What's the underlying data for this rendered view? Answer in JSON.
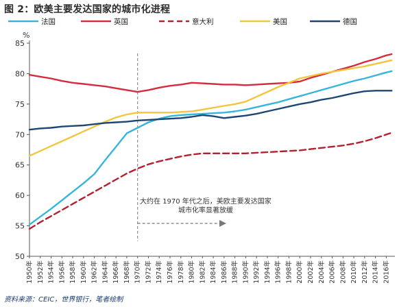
{
  "header": {
    "title": "图 2：欧美主要发达国家的城市化进程"
  },
  "footer": {
    "source": "资料来源：CEIC，世界银行，笔者绘制"
  },
  "colors": {
    "france": "#35b4dc",
    "uk": "#d42b3d",
    "italy": "#b3202e",
    "us": "#f2c53e",
    "germany": "#1d4674",
    "axis": "#555555",
    "annotation": "#777777"
  },
  "chart_data": {
    "type": "line",
    "title": "图 2：欧美主要发达国家的城市化进程",
    "ylabel": "%",
    "ylim": [
      50,
      85
    ],
    "yticks": [
      50,
      55,
      60,
      65,
      70,
      75,
      80,
      85
    ],
    "grid": false,
    "legend": "top",
    "x": [
      1950,
      1952,
      1954,
      1956,
      1958,
      1960,
      1962,
      1964,
      1966,
      1968,
      1970,
      1972,
      1974,
      1976,
      1978,
      1980,
      1982,
      1984,
      1986,
      1988,
      1990,
      1992,
      1994,
      1996,
      1998,
      2000,
      2002,
      2004,
      2006,
      2008,
      2010,
      2012,
      2014,
      2016,
      2017
    ],
    "xtick_labels": [
      "1950年",
      "1952年",
      "1954年",
      "1956年",
      "1958年",
      "1960年",
      "1962年",
      "1964年",
      "1966年",
      "1968年",
      "1970年",
      "1972年",
      "1974年",
      "1976年",
      "1978年",
      "1980年",
      "1982年",
      "1984年",
      "1986年",
      "1988年",
      "1990年",
      "1992年",
      "1994年",
      "1996年",
      "1998年",
      "2000年",
      "2002年",
      "2004年",
      "2006年",
      "2008年",
      "2010年",
      "2012年",
      "2014年",
      "2016年"
    ],
    "series": [
      {
        "name": "法国",
        "key": "france",
        "dashed": false,
        "values": [
          55.2,
          56.5,
          57.8,
          59.2,
          60.6,
          62.0,
          63.5,
          65.8,
          68.0,
          70.2,
          71.1,
          72.0,
          72.6,
          73.0,
          73.2,
          73.3,
          73.4,
          73.5,
          73.6,
          73.8,
          74.1,
          74.5,
          74.9,
          75.3,
          75.8,
          76.3,
          76.8,
          77.3,
          77.8,
          78.3,
          78.8,
          79.2,
          79.7,
          80.2,
          80.4
        ]
      },
      {
        "name": "英国",
        "key": "uk",
        "dashed": false,
        "values": [
          79.8,
          79.5,
          79.2,
          78.8,
          78.5,
          78.3,
          78.1,
          77.9,
          77.6,
          77.3,
          77.0,
          77.3,
          77.7,
          78.0,
          78.2,
          78.5,
          78.4,
          78.3,
          78.2,
          78.2,
          78.1,
          78.2,
          78.3,
          78.4,
          78.5,
          78.7,
          79.3,
          79.8,
          80.3,
          80.8,
          81.3,
          81.9,
          82.4,
          83.0,
          83.2
        ]
      },
      {
        "name": "意大利",
        "key": "italy",
        "dashed": true,
        "values": [
          54.5,
          55.6,
          56.6,
          57.6,
          58.6,
          59.6,
          60.6,
          61.6,
          62.6,
          63.6,
          64.4,
          65.1,
          65.6,
          66.0,
          66.4,
          66.7,
          66.9,
          66.9,
          66.9,
          66.9,
          66.9,
          67.0,
          67.1,
          67.2,
          67.3,
          67.4,
          67.6,
          67.8,
          68.0,
          68.2,
          68.5,
          68.9,
          69.4,
          70.0,
          70.3
        ]
      },
      {
        "name": "美国",
        "key": "us",
        "dashed": false,
        "values": [
          66.5,
          67.3,
          68.1,
          68.9,
          69.7,
          70.5,
          71.3,
          72.1,
          72.8,
          73.3,
          73.6,
          73.6,
          73.6,
          73.6,
          73.7,
          73.8,
          74.1,
          74.4,
          74.7,
          75.0,
          75.4,
          76.2,
          77.0,
          77.8,
          78.5,
          79.2,
          79.6,
          80.0,
          80.3,
          80.6,
          80.9,
          81.2,
          81.6,
          82.0,
          82.2
        ]
      },
      {
        "name": "德国",
        "key": "germany",
        "dashed": false,
        "values": [
          70.8,
          71.0,
          71.1,
          71.3,
          71.4,
          71.5,
          71.7,
          71.9,
          72.0,
          72.1,
          72.3,
          72.4,
          72.5,
          72.6,
          72.7,
          72.9,
          73.2,
          73.0,
          72.7,
          72.9,
          73.1,
          73.4,
          73.8,
          74.2,
          74.6,
          75.0,
          75.3,
          75.7,
          76.0,
          76.4,
          76.8,
          77.1,
          77.2,
          77.2,
          77.2
        ]
      }
    ],
    "annotation": {
      "text_line1": "大约在 1970 年代之后，美欧主要发达国家",
      "text_line2": "城市化率显著放缓",
      "x_at": 1970
    }
  }
}
